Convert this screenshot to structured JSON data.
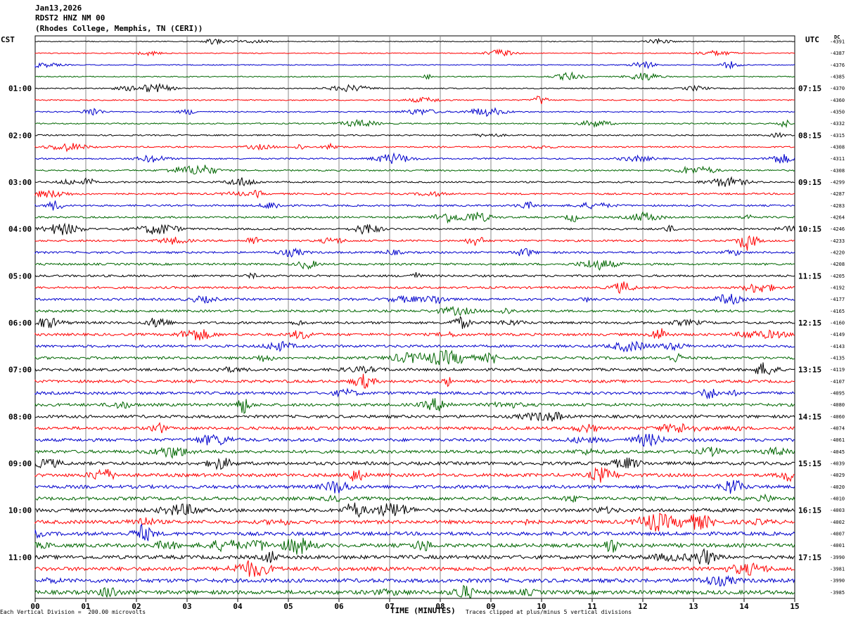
{
  "header": {
    "date": "Jan13,2026",
    "station": "RDST2 HNZ NM 00",
    "location": "(Rhodes College, Memphis, TN (CERI))"
  },
  "left_timezone": "CST",
  "right_timezone": "UTC",
  "dc_label": "DC",
  "footer": {
    "scale_note": "Each Vertical Division =  200.00 microvolts",
    "clip_note": "Traces clipped at plus/minus 5 vertical divisions"
  },
  "trace_colors": [
    "#000000",
    "#ff0000",
    "#0000cc",
    "#006600"
  ],
  "chart_data": {
    "type": "line",
    "xlabel": "TIME (MINUTES)",
    "x_ticks": [
      "00",
      "01",
      "02",
      "03",
      "04",
      "05",
      "06",
      "07",
      "08",
      "09",
      "10",
      "11",
      "12",
      "13",
      "14",
      "15"
    ],
    "xlim": [
      0,
      15
    ],
    "rows": 48,
    "left_hour_labels": [
      "01:00",
      "02:00",
      "03:00",
      "04:00",
      "05:00",
      "06:00",
      "07:00",
      "08:00",
      "09:00",
      "10:00",
      "11:00"
    ],
    "right_hour_labels": [
      "07:15",
      "08:15",
      "09:15",
      "10:15",
      "11:15",
      "12:15",
      "13:15",
      "14:15",
      "15:15",
      "16:15",
      "17:15"
    ],
    "dc_offsets": [
      "-4391",
      "-4387",
      "-4376",
      "-4385",
      "-4370",
      "-4360",
      "-4350",
      "-4332",
      "-4315",
      "-4308",
      "-4311",
      "-4308",
      "-4299",
      "-4287",
      "-4283",
      "-4264",
      "-4246",
      "-4233",
      "-4220",
      "-4208",
      "-4205",
      "-4192",
      "-4177",
      "-4165",
      "-4160",
      "-4149",
      "-4143",
      "-4135",
      "-4119",
      "-4107",
      "-4095",
      "-4080",
      "-4060",
      "-4074",
      "-4061",
      "-4045",
      "-4039",
      "-4029",
      "-4020",
      "-4010",
      "-4003",
      "-4002",
      "-4007",
      "-4001",
      "-3990",
      "-3981",
      "-3990",
      "-3985"
    ]
  }
}
